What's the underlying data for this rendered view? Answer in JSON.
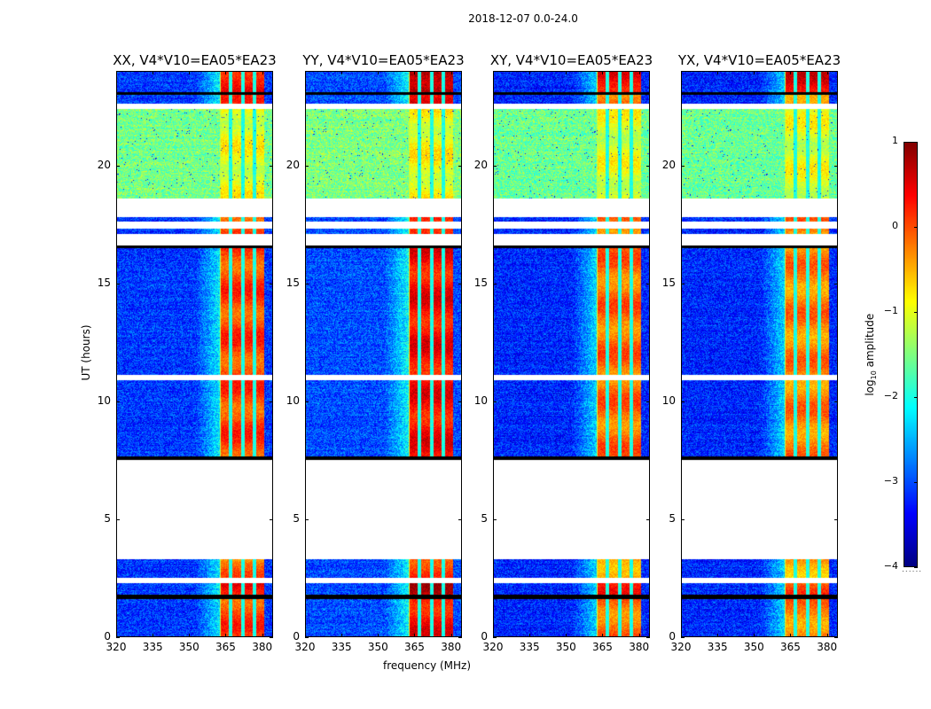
{
  "chart_data": {
    "type": "heatmap",
    "suptitle": "2018-12-07 0.0-24.0",
    "xlabel": "frequency (MHz)",
    "ylabel": "UT (hours)",
    "xlim": [
      320,
      384.5
    ],
    "ylim": [
      0,
      24
    ],
    "xticks": [
      320,
      335,
      350,
      365,
      380
    ],
    "yticks": [
      0,
      5,
      10,
      15,
      20
    ],
    "colorbar": {
      "label_prefix": "log",
      "label_sub": "10",
      "label_suffix": " amplitude",
      "range": [
        -4,
        1
      ],
      "ticks": [
        1,
        0,
        -1,
        -2,
        -3,
        -4
      ],
      "tick_labels": [
        "1",
        "0",
        "−1",
        "−2",
        "−3",
        "−4"
      ],
      "colormap": "jet"
    },
    "panels": [
      {
        "id": "XX",
        "title": "XX, V4*V10=EA05*EA23",
        "band_level": 0.05,
        "band_edge": 362,
        "bg_level": -3.1,
        "top_level": 0.4,
        "mid_level": -1.55
      },
      {
        "id": "YY",
        "title": "YY, V4*V10=EA05*EA23",
        "band_level": 0.35,
        "band_edge": 362,
        "bg_level": -3.0,
        "top_level": 0.85,
        "mid_level": -1.5
      },
      {
        "id": "XY",
        "title": "XY, V4*V10=EA05*EA23",
        "band_level": -0.15,
        "band_edge": 362,
        "bg_level": -3.2,
        "top_level": 0.45,
        "mid_level": -1.6
      },
      {
        "id": "YX",
        "title": "YX, V4*V10=EA05*EA23",
        "band_level": -0.25,
        "band_edge": 362,
        "bg_level": -3.2,
        "top_level": 0.45,
        "mid_level": -1.6
      }
    ],
    "rfi_band": {
      "start_mhz": 362.5,
      "end_mhz": 381,
      "channel_gaps_mhz": [
        367,
        372,
        377
      ]
    },
    "time_segments": [
      {
        "start": 0.0,
        "end": 1.6,
        "kind": "normal"
      },
      {
        "start": 1.6,
        "end": 1.8,
        "kind": "flagged-black"
      },
      {
        "start": 1.8,
        "end": 2.3,
        "kind": "hot"
      },
      {
        "start": 2.3,
        "end": 2.5,
        "kind": "flagged-white"
      },
      {
        "start": 2.5,
        "end": 3.3,
        "kind": "warm"
      },
      {
        "start": 3.3,
        "end": 7.5,
        "kind": "flagged-white"
      },
      {
        "start": 7.5,
        "end": 7.65,
        "kind": "flagged-black"
      },
      {
        "start": 7.65,
        "end": 10.9,
        "kind": "normal"
      },
      {
        "start": 10.9,
        "end": 11.1,
        "kind": "flagged-white"
      },
      {
        "start": 11.1,
        "end": 16.5,
        "kind": "normal"
      },
      {
        "start": 16.5,
        "end": 16.6,
        "kind": "flagged-black"
      },
      {
        "start": 16.6,
        "end": 17.1,
        "kind": "flagged-white"
      },
      {
        "start": 17.1,
        "end": 17.3,
        "kind": "normal"
      },
      {
        "start": 17.3,
        "end": 17.6,
        "kind": "flagged-white"
      },
      {
        "start": 17.6,
        "end": 17.8,
        "kind": "normal"
      },
      {
        "start": 17.8,
        "end": 18.6,
        "kind": "flagged-white"
      },
      {
        "start": 18.6,
        "end": 22.4,
        "kind": "mid"
      },
      {
        "start": 22.4,
        "end": 22.6,
        "kind": "flagged-white"
      },
      {
        "start": 22.6,
        "end": 23.0,
        "kind": "normal"
      },
      {
        "start": 23.0,
        "end": 23.1,
        "kind": "flagged-black"
      },
      {
        "start": 23.1,
        "end": 24.0,
        "kind": "top"
      }
    ]
  }
}
